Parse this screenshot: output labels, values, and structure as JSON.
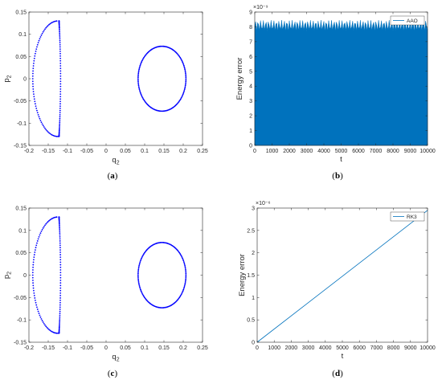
{
  "chart_data": [
    {
      "type": "scatter",
      "panel_label": "a",
      "xlabel": "q2",
      "ylabel": "p2",
      "xlim": [
        -0.2,
        0.25
      ],
      "ylim": [
        -0.15,
        0.15
      ],
      "xticks": [
        "-0.2",
        "-0.15",
        "-0.1",
        "-0.05",
        "0",
        "0.05",
        "0.1",
        "0.15",
        "0.2",
        "0.25"
      ],
      "yticks": [
        "-0.15",
        "-0.1",
        "-0.05",
        "0",
        "0.05",
        "0.1",
        "0.15"
      ],
      "color": "#0000ff",
      "series": [
        {
          "shape": "crescent",
          "x_range": [
            -0.19,
            -0.115
          ],
          "y_range": [
            -0.13,
            0.13
          ],
          "center_q": -0.125
        },
        {
          "shape": "ellipse",
          "center": [
            0.145,
            0.0
          ],
          "q_radius": 0.062,
          "p_radius": 0.073
        }
      ]
    },
    {
      "type": "area",
      "panel_label": "b",
      "xlabel": "t",
      "ylabel": "Energy error",
      "xlim": [
        0,
        10000
      ],
      "ylim": [
        0,
        9
      ],
      "scale_exponent": "×10⁻⁹",
      "xticks": [
        "0",
        "1000",
        "2000",
        "3000",
        "4000",
        "5000",
        "6000",
        "7000",
        "8000",
        "9000",
        "10000"
      ],
      "yticks": [
        "0",
        "1",
        "2",
        "3",
        "4",
        "5",
        "6",
        "7",
        "8",
        "9"
      ],
      "series": [
        {
          "name": "AAO",
          "oscillation_range": [
            7.7,
            8.45
          ],
          "color": "#0072bd"
        }
      ]
    },
    {
      "type": "scatter",
      "panel_label": "c",
      "xlabel": "q2",
      "ylabel": "p2",
      "xlim": [
        -0.2,
        0.25
      ],
      "ylim": [
        -0.15,
        0.15
      ],
      "xticks": [
        "-0.2",
        "-0.15",
        "-0.1",
        "-0.05",
        "0",
        "0.05",
        "0.1",
        "0.15",
        "0.2",
        "0.25"
      ],
      "yticks": [
        "-0.15",
        "-0.1",
        "-0.05",
        "0",
        "0.05",
        "0.1",
        "0.15"
      ],
      "color": "#0000ff",
      "series": [
        {
          "shape": "crescent",
          "x_range": [
            -0.19,
            -0.115
          ],
          "y_range": [
            -0.13,
            0.13
          ],
          "center_q": -0.125
        },
        {
          "shape": "ellipse",
          "center": [
            0.145,
            0.0
          ],
          "q_radius": 0.062,
          "p_radius": 0.073
        }
      ]
    },
    {
      "type": "line",
      "panel_label": "d",
      "xlabel": "t",
      "ylabel": "Energy error",
      "xlim": [
        0,
        10000
      ],
      "ylim": [
        0,
        3
      ],
      "scale_exponent": "×10⁻⁶",
      "xticks": [
        "0",
        "1000",
        "2000",
        "3000",
        "4000",
        "5000",
        "6000",
        "7000",
        "8000",
        "9000",
        "10000"
      ],
      "yticks": [
        "0",
        "0.5",
        "1",
        "1.5",
        "2",
        "2.5",
        "3"
      ],
      "series": [
        {
          "name": "RK3",
          "x": [
            0,
            10000
          ],
          "y": [
            0,
            2.95
          ],
          "color": "#0072bd"
        }
      ]
    }
  ],
  "captions": [
    "(a)",
    "(b)",
    "(c)",
    "(d)"
  ]
}
